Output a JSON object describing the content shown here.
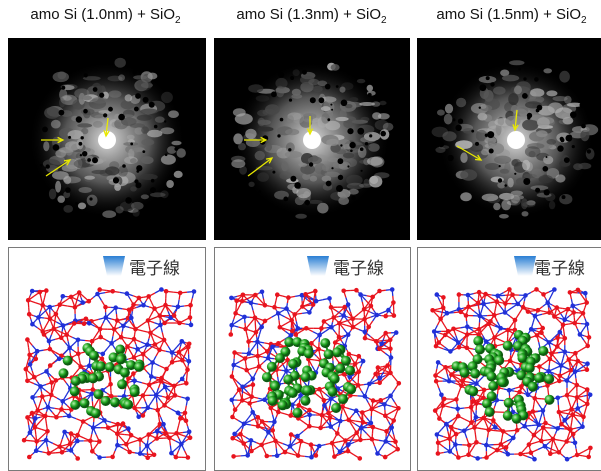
{
  "panels": [
    {
      "title": "amo Si (1.0nm) + SiO",
      "sub": "2",
      "beam_label": "電子線",
      "cluster_size_nm": 1.0
    },
    {
      "title": "amo Si (1.3nm) + SiO",
      "sub": "2",
      "beam_label": "電子線",
      "cluster_size_nm": 1.3
    },
    {
      "title": "amo Si (1.5nm) + SiO",
      "sub": "2",
      "beam_label": "電子線",
      "cluster_size_nm": 1.5
    }
  ],
  "colors": {
    "background": "#000000",
    "arrow": "#e8e800",
    "oxygen_atom": "#e8141e",
    "si_atom_network": "#2030d8",
    "si_cluster_atom": "#22a822",
    "beam_gradient_top": "#2a7fd4",
    "beam_gradient_bottom": "#ffffff"
  }
}
